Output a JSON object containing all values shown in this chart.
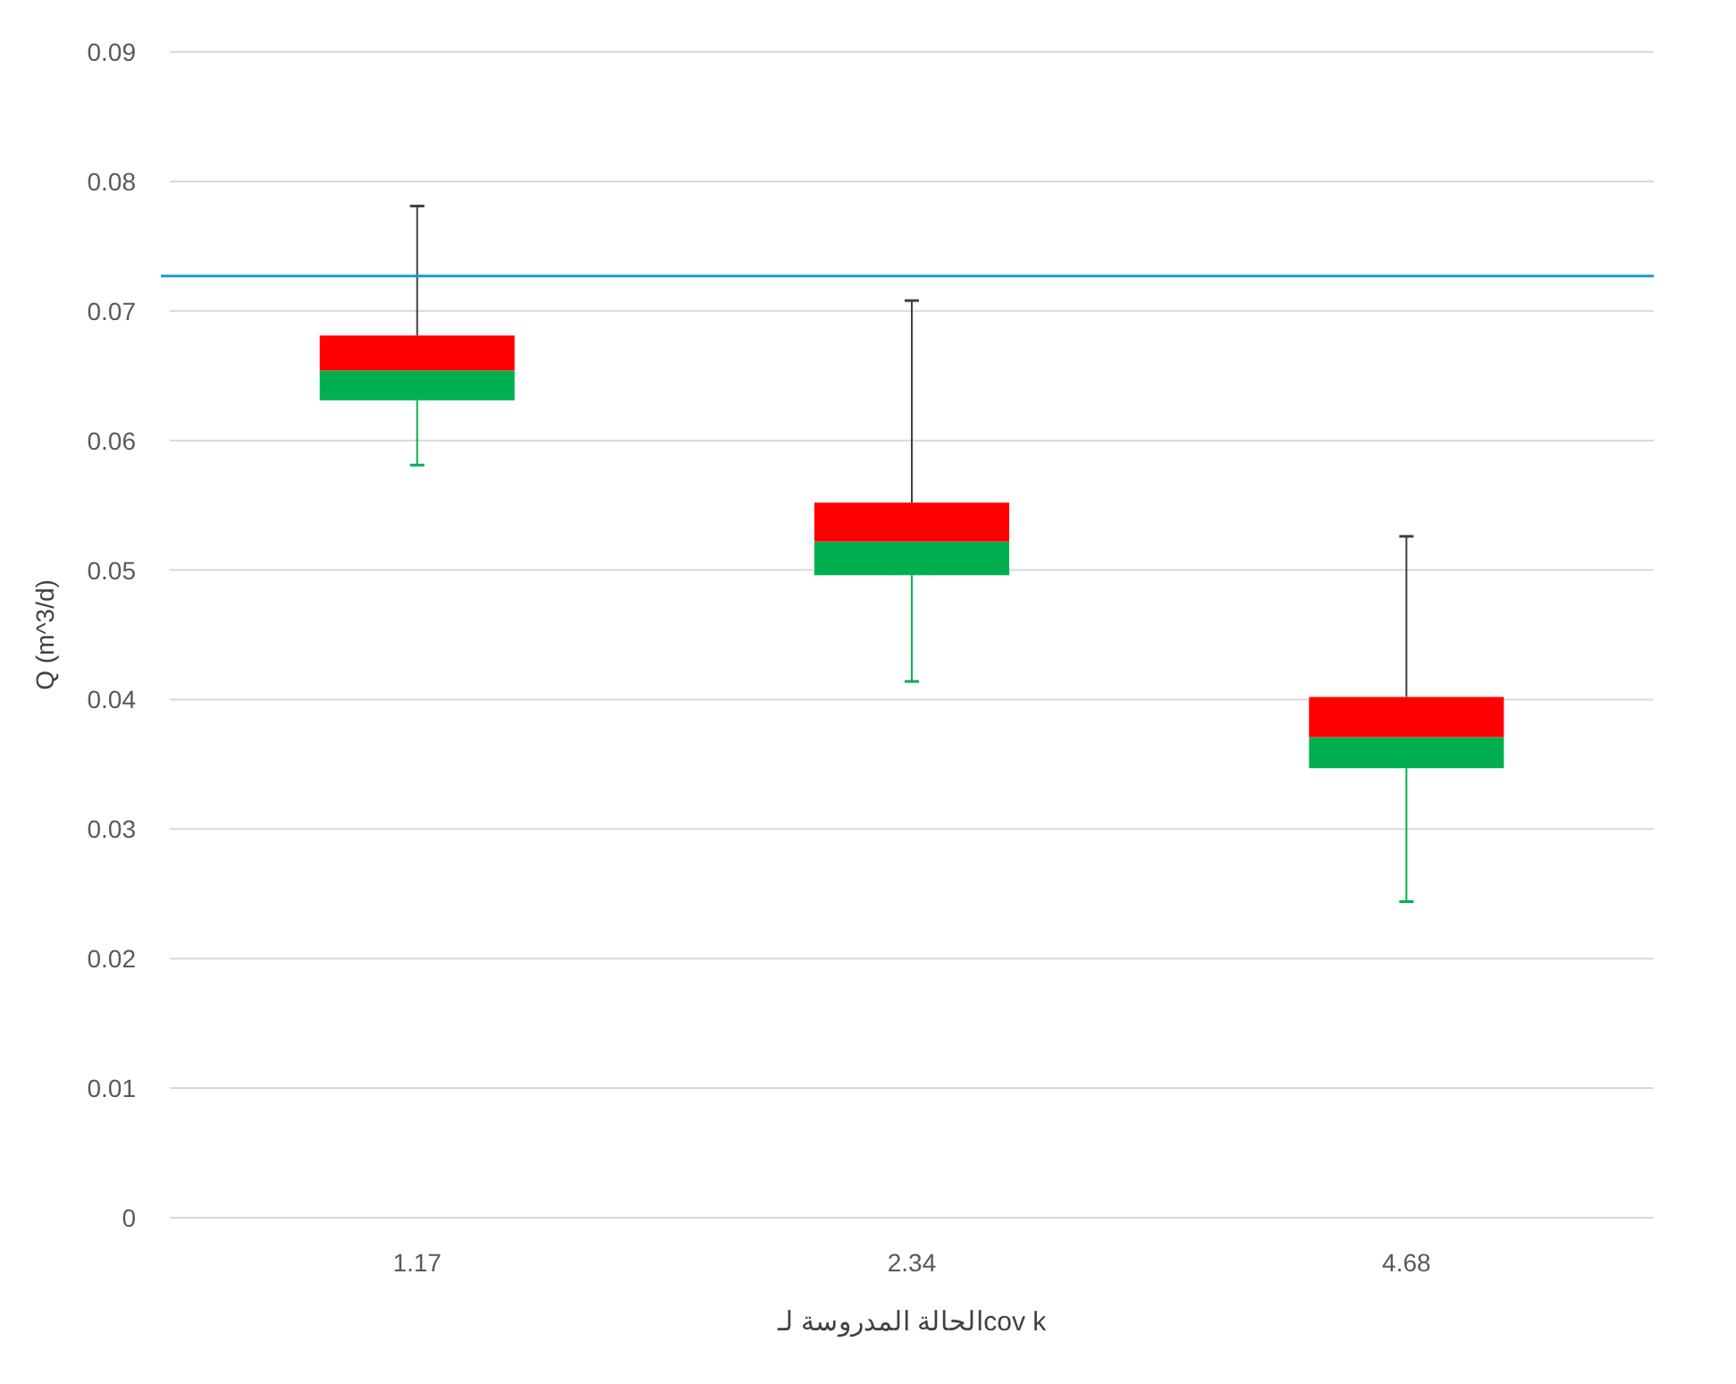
{
  "chart_data": {
    "type": "box",
    "ylabel": "Q (m^3/d)",
    "xlabel": "الحالة المدروسة لـcov k",
    "categories": [
      "1.17",
      "2.34",
      "4.68"
    ],
    "boxes": [
      {
        "low": 0.0581,
        "q1": 0.0631,
        "median": 0.0654,
        "q3": 0.0681,
        "high": 0.0781
      },
      {
        "low": 0.0414,
        "q1": 0.0496,
        "median": 0.0522,
        "q3": 0.0552,
        "high": 0.0708
      },
      {
        "low": 0.0244,
        "q1": 0.0347,
        "median": 0.0371,
        "q3": 0.0402,
        "high": 0.0526
      }
    ],
    "color": [
      "#00b050",
      "#ff0000"
    ],
    "ylim": [
      0,
      0.09
    ],
    "yticks": [
      0,
      0.01,
      0.02,
      0.03,
      0.04,
      0.05,
      0.06,
      0.07,
      0.08,
      0.09
    ],
    "grid": "y",
    "ref_lines": [
      {
        "axis": "y",
        "value": 0.0727,
        "color": "#1a9ad6"
      }
    ]
  }
}
